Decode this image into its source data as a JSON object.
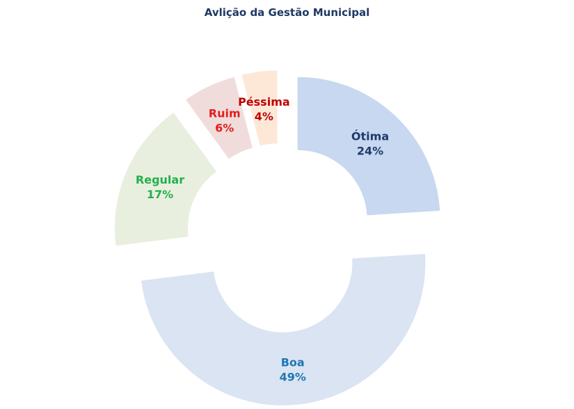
{
  "chart_data": {
    "type": "pie",
    "title": "Avlição da Gestão Municipal",
    "slices": [
      {
        "label": "Ótima",
        "value": 24,
        "value_label": "24%",
        "fill": "#c7d8f0",
        "text_color": "#1f3a6b"
      },
      {
        "label": "Boa",
        "value": 49,
        "value_label": "49%",
        "fill": "#dae4f2",
        "text_color": "#1f77b4"
      },
      {
        "label": "Regular",
        "value": 17,
        "value_label": "17%",
        "fill": "#e9efdf",
        "text_color": "#22b14c"
      },
      {
        "label": "Ruim",
        "value": 6,
        "value_label": "6%",
        "fill": "#f1dcdc",
        "text_color": "#e0201f"
      },
      {
        "label": "Péssima",
        "value": 4,
        "value_label": "4%",
        "fill": "#fde8d8",
        "text_color": "#c00000"
      }
    ]
  }
}
